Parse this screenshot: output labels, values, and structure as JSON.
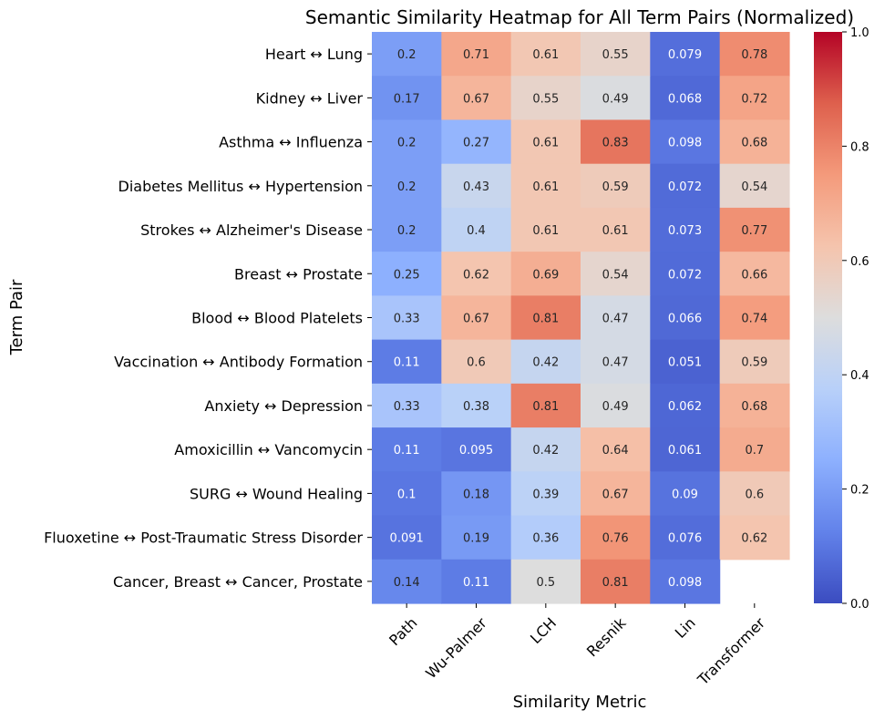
{
  "chart_data": {
    "type": "heatmap",
    "title": "Semantic Similarity Heatmap for All Term Pairs (Normalized)",
    "xlabel": "Similarity Metric",
    "ylabel": "Term Pair",
    "columns": [
      "Path",
      "Wu-Palmer",
      "LCH",
      "Resnik",
      "Lin",
      "Transformer"
    ],
    "rows": [
      "Heart ↔ Lung",
      "Kidney ↔ Liver",
      "Asthma ↔ Influenza",
      "Diabetes Mellitus ↔ Hypertension",
      "Strokes ↔ Alzheimer's Disease",
      "Breast ↔ Prostate",
      "Blood ↔ Blood Platelets",
      "Vaccination ↔ Antibody Formation",
      "Anxiety ↔ Depression",
      "Amoxicillin ↔ Vancomycin",
      "SURG ↔ Wound Healing",
      "Fluoxetine ↔ Post-Traumatic Stress Disorder",
      "Cancer, Breast ↔ Cancer, Prostate"
    ],
    "values": [
      [
        0.2,
        0.71,
        0.61,
        0.55,
        0.079,
        0.78
      ],
      [
        0.17,
        0.67,
        0.55,
        0.49,
        0.068,
        0.72
      ],
      [
        0.2,
        0.27,
        0.61,
        0.83,
        0.098,
        0.68
      ],
      [
        0.2,
        0.43,
        0.61,
        0.59,
        0.072,
        0.54
      ],
      [
        0.2,
        0.4,
        0.61,
        0.61,
        0.073,
        0.77
      ],
      [
        0.25,
        0.62,
        0.69,
        0.54,
        0.072,
        0.66
      ],
      [
        0.33,
        0.67,
        0.81,
        0.47,
        0.066,
        0.74
      ],
      [
        0.11,
        0.6,
        0.42,
        0.47,
        0.051,
        0.59
      ],
      [
        0.33,
        0.38,
        0.81,
        0.49,
        0.062,
        0.68
      ],
      [
        0.11,
        0.095,
        0.42,
        0.64,
        0.061,
        0.7
      ],
      [
        0.1,
        0.18,
        0.39,
        0.67,
        0.09,
        0.6
      ],
      [
        0.091,
        0.19,
        0.36,
        0.76,
        0.076,
        0.62
      ],
      [
        0.14,
        0.11,
        0.5,
        0.81,
        0.098,
        null
      ]
    ],
    "colormap": "coolwarm",
    "value_range": [
      0.0,
      1.0
    ],
    "colorbar_ticks": [
      "0.0",
      "0.2",
      "0.4",
      "0.6",
      "0.8",
      "1.0"
    ]
  }
}
